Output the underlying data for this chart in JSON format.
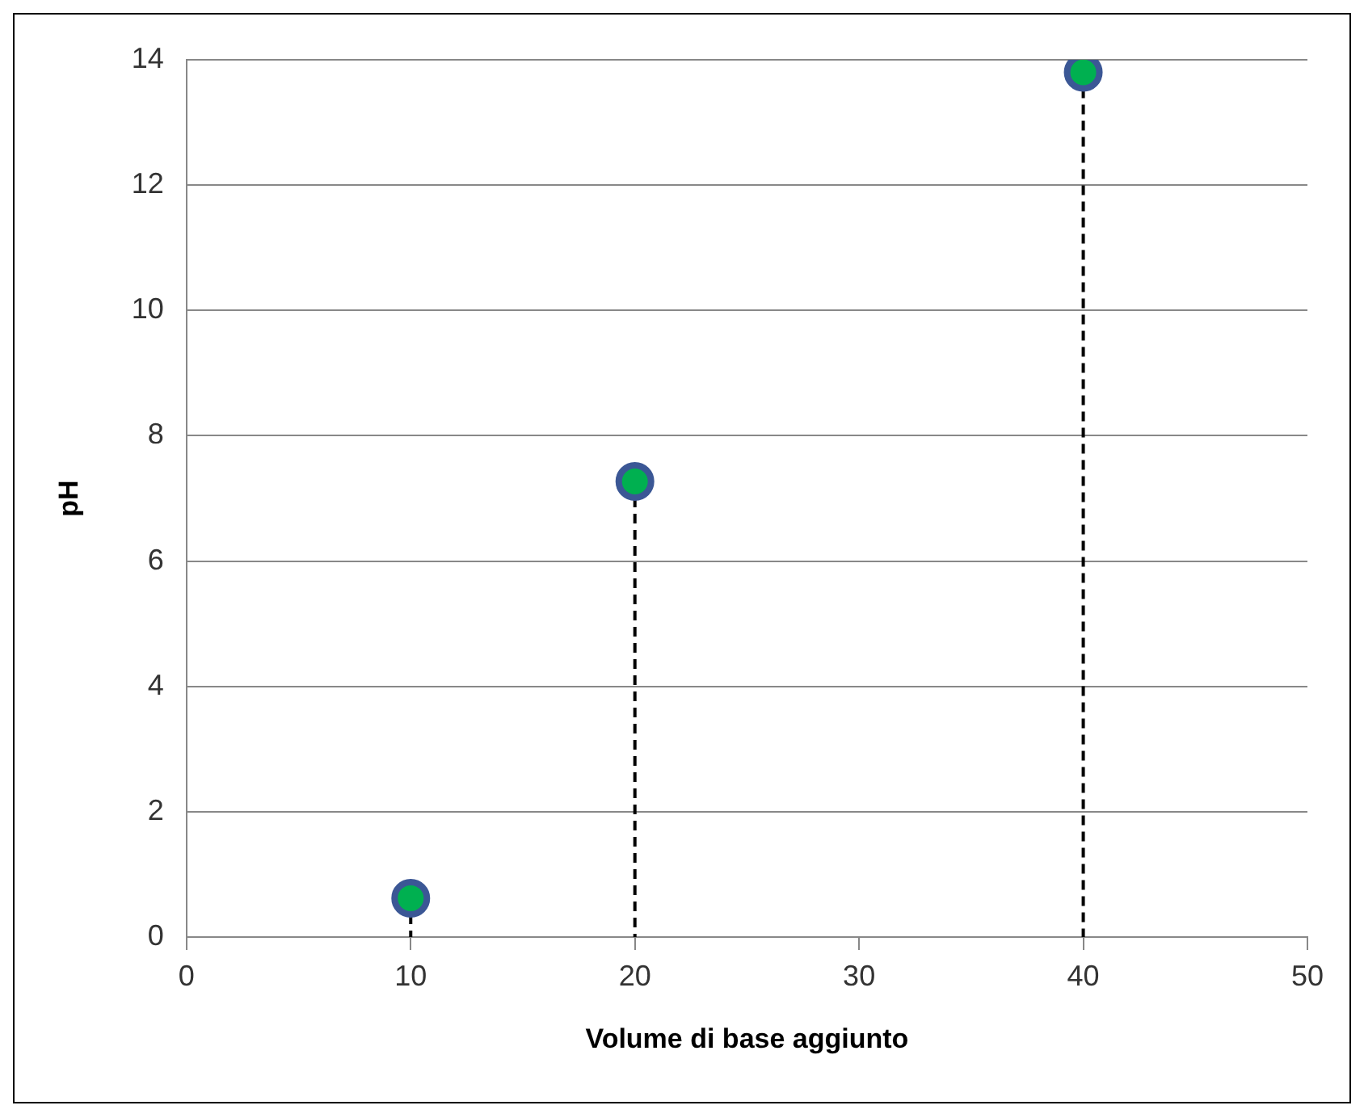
{
  "chart_data": {
    "type": "lollipop",
    "xlabel": "Volume di base aggiunto",
    "ylabel": "pH",
    "x": [
      10,
      20,
      40
    ],
    "values": [
      0.62,
      7.27,
      13.8
    ],
    "color": "#00b050",
    "xlim": [
      0,
      50
    ],
    "xticks": [
      0,
      10,
      20,
      30,
      40,
      50
    ],
    "ylim": [
      0,
      14
    ],
    "yticks": [
      0,
      2,
      4,
      6,
      8,
      10,
      12,
      14
    ],
    "grid": "y",
    "legend": false,
    "marker": "circle",
    "line_style": "dashed"
  }
}
